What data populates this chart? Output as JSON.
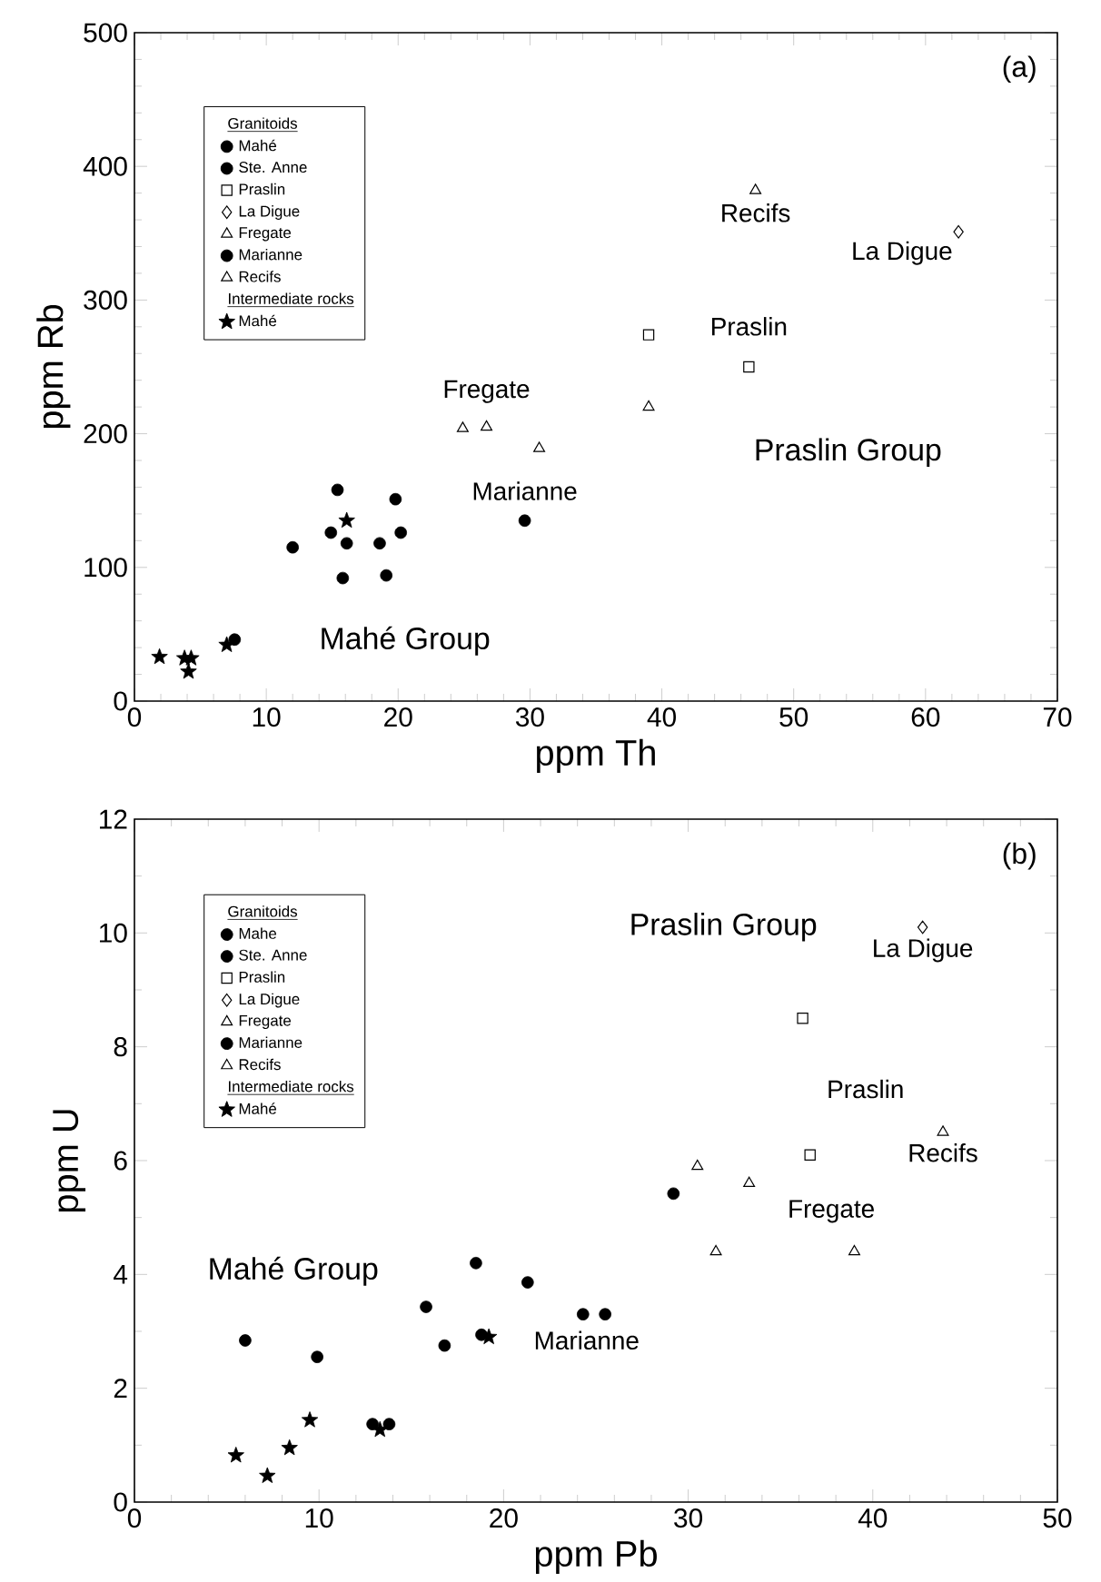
{
  "chart_data": [
    {
      "type": "scatter",
      "xlabel": "ppm Th",
      "ylabel": "ppm Rb",
      "xlim": [
        0,
        70
      ],
      "ylim": [
        0,
        500
      ],
      "xticks": [
        0,
        10,
        20,
        30,
        40,
        50,
        60,
        70
      ],
      "yticks": [
        0,
        100,
        200,
        300,
        400,
        500
      ],
      "legend": "top left",
      "legend_title": "Granitoids",
      "grid": false,
      "annotations": [
        "(a)",
        "Intermediate rocks",
        "Praslin Group",
        "Mahé Group",
        {
          "text": "Recifs",
          "x": 47.1,
          "y": 382
        },
        {
          "text": "La Digue",
          "x": 62.5,
          "y": 351
        },
        {
          "text": "Praslin",
          "x": 46.6,
          "y": 250
        },
        {
          "text": "Fregate",
          "x": 26.7,
          "y": 205
        },
        {
          "text": "Marianne",
          "x": 29.6,
          "y": 135
        }
      ],
      "series": [
        {
          "name": "Mahé",
          "color": "#000000",
          "marker": "circle",
          "x": [
            7.6,
            12,
            14.9,
            16.1,
            15.8,
            18.6,
            19.1,
            19.8,
            20.2
          ],
          "values": [
            46,
            115,
            126,
            118,
            92,
            118,
            94,
            151,
            126
          ]
        },
        {
          "name": "Ste. Anne",
          "color": "#000000",
          "marker": "circle",
          "x": [
            15.4
          ],
          "values": [
            158
          ]
        },
        {
          "name": "Praslin",
          "color": "#000000",
          "marker": "square",
          "x": [
            39,
            46.6
          ],
          "values": [
            274,
            250
          ]
        },
        {
          "name": "La Digue",
          "color": "#000000",
          "marker": "diamond",
          "x": [
            62.5
          ],
          "values": [
            351
          ]
        },
        {
          "name": "Fregate",
          "color": "#000000",
          "marker": "triangle",
          "x": [
            24.9,
            26.7,
            30.7,
            39
          ],
          "values": [
            204,
            205,
            189,
            220
          ]
        },
        {
          "name": "Marianne",
          "color": "#000000",
          "marker": "circle",
          "x": [
            29.6
          ],
          "values": [
            135
          ]
        },
        {
          "name": "Recifs",
          "color": "#000000",
          "marker": "triangle",
          "x": [
            47.1
          ],
          "values": [
            382
          ]
        },
        {
          "name": "Mahé",
          "color": "#000000",
          "marker": "star",
          "x": [
            1.9,
            3.8,
            4.3,
            4.1,
            7,
            16.1
          ],
          "values": [
            33,
            32,
            32,
            22,
            42,
            135
          ]
        }
      ]
    },
    {
      "type": "scatter",
      "xlabel": "ppm Pb",
      "ylabel": "ppm U",
      "xlim": [
        0,
        50
      ],
      "ylim": [
        0,
        12
      ],
      "xticks": [
        0,
        10,
        20,
        30,
        40,
        50
      ],
      "yticks": [
        0,
        2,
        4,
        6,
        8,
        10,
        12
      ],
      "legend": "top left",
      "legend_title": "Granitoids",
      "grid": false,
      "annotations": [
        "(b)",
        "Intermediate rocks",
        "Praslin Group",
        "Mahé Group",
        {
          "text": "La Digue",
          "x": 42.7,
          "y": 10.1
        },
        {
          "text": "Praslin",
          "x": 36.6,
          "y": 6.1
        },
        {
          "text": "Recifs",
          "x": 43.8,
          "y": 6.5
        },
        {
          "text": "Fregate",
          "x": 33.3,
          "y": 5.6
        },
        {
          "text": "Marianne",
          "x": 24.3,
          "y": 3.3
        }
      ],
      "series": [
        {
          "name": "Mahe",
          "color": "#000000",
          "marker": "circle",
          "x": [
            6,
            9.9,
            15.8,
            16.8,
            18.5,
            21.3,
            18.8,
            12.9,
            13.8,
            29.2
          ],
          "values": [
            2.84,
            2.55,
            3.43,
            2.75,
            4.2,
            3.86,
            2.94,
            1.37,
            1.37,
            5.42
          ]
        },
        {
          "name": "Ste. Anne",
          "color": "#000000",
          "marker": "circle",
          "x": [
            25.5
          ],
          "values": [
            3.3
          ]
        },
        {
          "name": "Praslin",
          "color": "#000000",
          "marker": "square",
          "x": [
            36.2,
            36.6
          ],
          "values": [
            8.5,
            6.1
          ]
        },
        {
          "name": "La Digue",
          "color": "#000000",
          "marker": "diamond",
          "x": [
            42.7
          ],
          "values": [
            10.1
          ]
        },
        {
          "name": "Fregate",
          "color": "#000000",
          "marker": "triangle",
          "x": [
            30.5,
            33.3,
            31.5,
            39
          ],
          "values": [
            5.9,
            5.6,
            4.4,
            4.4
          ]
        },
        {
          "name": "Marianne",
          "color": "#000000",
          "marker": "circle",
          "x": [
            24.3
          ],
          "values": [
            3.3
          ]
        },
        {
          "name": "Recifs",
          "color": "#000000",
          "marker": "triangle",
          "x": [
            43.8
          ],
          "values": [
            6.5
          ]
        },
        {
          "name": "Mahé",
          "color": "#000000",
          "marker": "star",
          "x": [
            5.5,
            7.2,
            8.4,
            9.5,
            13.3,
            19.2
          ],
          "values": [
            0.82,
            0.46,
            0.95,
            1.44,
            1.27,
            2.9
          ]
        }
      ]
    }
  ]
}
